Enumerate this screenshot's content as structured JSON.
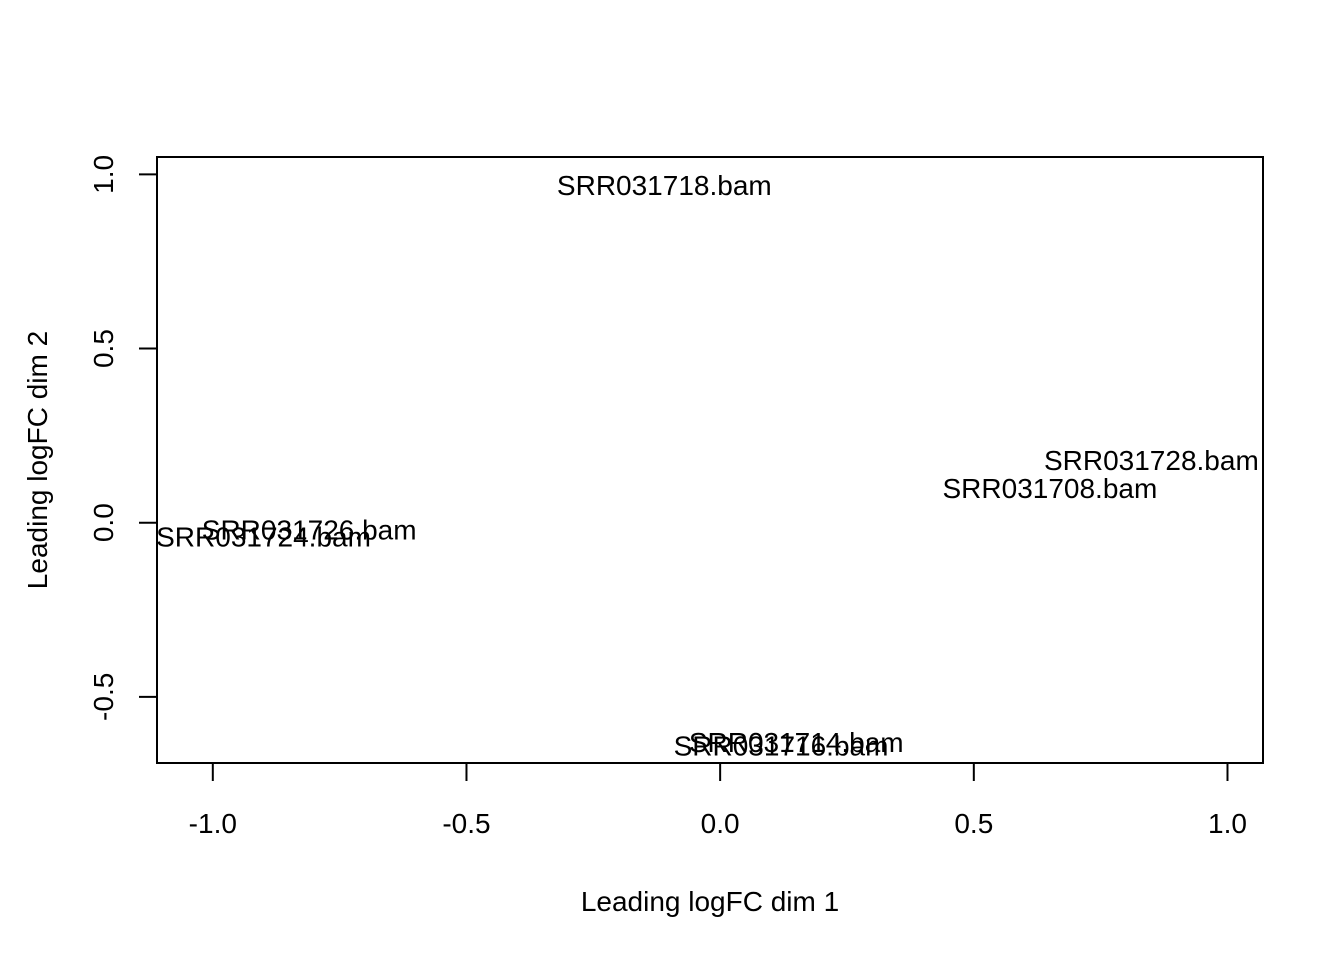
{
  "chart_data": {
    "type": "scatter",
    "title": "",
    "xlabel": "Leading logFC dim 1",
    "ylabel": "Leading logFC dim 2",
    "xlim": [
      -1.11,
      1.07
    ],
    "ylim": [
      -0.69,
      1.05
    ],
    "x_ticks": [
      -1.0,
      -0.5,
      0.0,
      0.5,
      1.0
    ],
    "x_tick_labels": [
      "-1.0",
      "-0.5",
      "0.0",
      "0.5",
      "1.0"
    ],
    "y_ticks": [
      -0.5,
      0.0,
      0.5,
      1.0
    ],
    "y_tick_labels": [
      "-0.5",
      "0.0",
      "0.5",
      "1.0"
    ],
    "grid": false,
    "legend": "none",
    "points": [
      {
        "label": "SRR031718.bam",
        "x": -0.11,
        "y": 0.97
      },
      {
        "label": "SRR031728.bam",
        "x": 0.85,
        "y": 0.18
      },
      {
        "label": "SRR031708.bam",
        "x": 0.65,
        "y": 0.1
      },
      {
        "label": "SRR031726.bam",
        "x": -0.81,
        "y": -0.02
      },
      {
        "label": "SRR031724.bam",
        "x": -0.9,
        "y": -0.04
      },
      {
        "label": "SRR031714.bam",
        "x": 0.15,
        "y": -0.63
      },
      {
        "label": "SRR031716.bam",
        "x": 0.12,
        "y": -0.64
      }
    ]
  }
}
